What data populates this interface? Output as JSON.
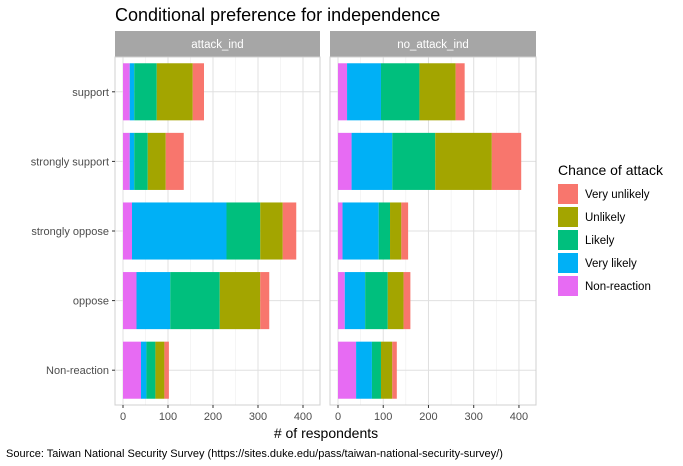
{
  "chart_data": {
    "type": "bar",
    "orientation": "horizontal",
    "stacked": true,
    "title": "Conditional preference for independence",
    "xlabel": "# of respondents",
    "ylabel": "",
    "xlim": [
      0,
      420
    ],
    "xticks": [
      "0",
      "100",
      "200",
      "300",
      "400"
    ],
    "grid": true,
    "categories": [
      "support",
      "strongly support",
      "strongly oppose",
      "oppose",
      "Non-reaction"
    ],
    "legend": {
      "title": "Chance of attack",
      "position": "right",
      "entries": [
        "Very unlikely",
        "Unlikely",
        "Likely",
        "Very likely",
        "Non-reaction"
      ]
    },
    "colors": {
      "Very unlikely": "#F8766D",
      "Unlikely": "#A3A500",
      "Likely": "#00BF7D",
      "Very likely": "#00B0F6",
      "Non-reaction": "#E76BF3"
    },
    "stack_order": [
      "Non-reaction",
      "Very likely",
      "Likely",
      "Unlikely",
      "Very unlikely"
    ],
    "facets": [
      {
        "label": "attack_ind",
        "series": {
          "Non-reaction": [
            15,
            15,
            20,
            30,
            40
          ],
          "Very likely": [
            10,
            10,
            210,
            75,
            12
          ],
          "Likely": [
            50,
            30,
            75,
            110,
            20
          ],
          "Unlikely": [
            80,
            40,
            50,
            90,
            20
          ],
          "Very unlikely": [
            25,
            40,
            30,
            20,
            10
          ]
        }
      },
      {
        "label": "no_attack_ind",
        "series": {
          "Non-reaction": [
            20,
            30,
            10,
            15,
            40
          ],
          "Very likely": [
            75,
            90,
            80,
            45,
            35
          ],
          "Likely": [
            85,
            95,
            25,
            50,
            20
          ],
          "Unlikely": [
            80,
            125,
            25,
            35,
            25
          ],
          "Very unlikely": [
            20,
            65,
            15,
            15,
            10
          ]
        }
      }
    ]
  },
  "caption": "Source: Taiwan National Security Survey (https://sites.duke.edu/pass/taiwan-national-security-survey/)"
}
